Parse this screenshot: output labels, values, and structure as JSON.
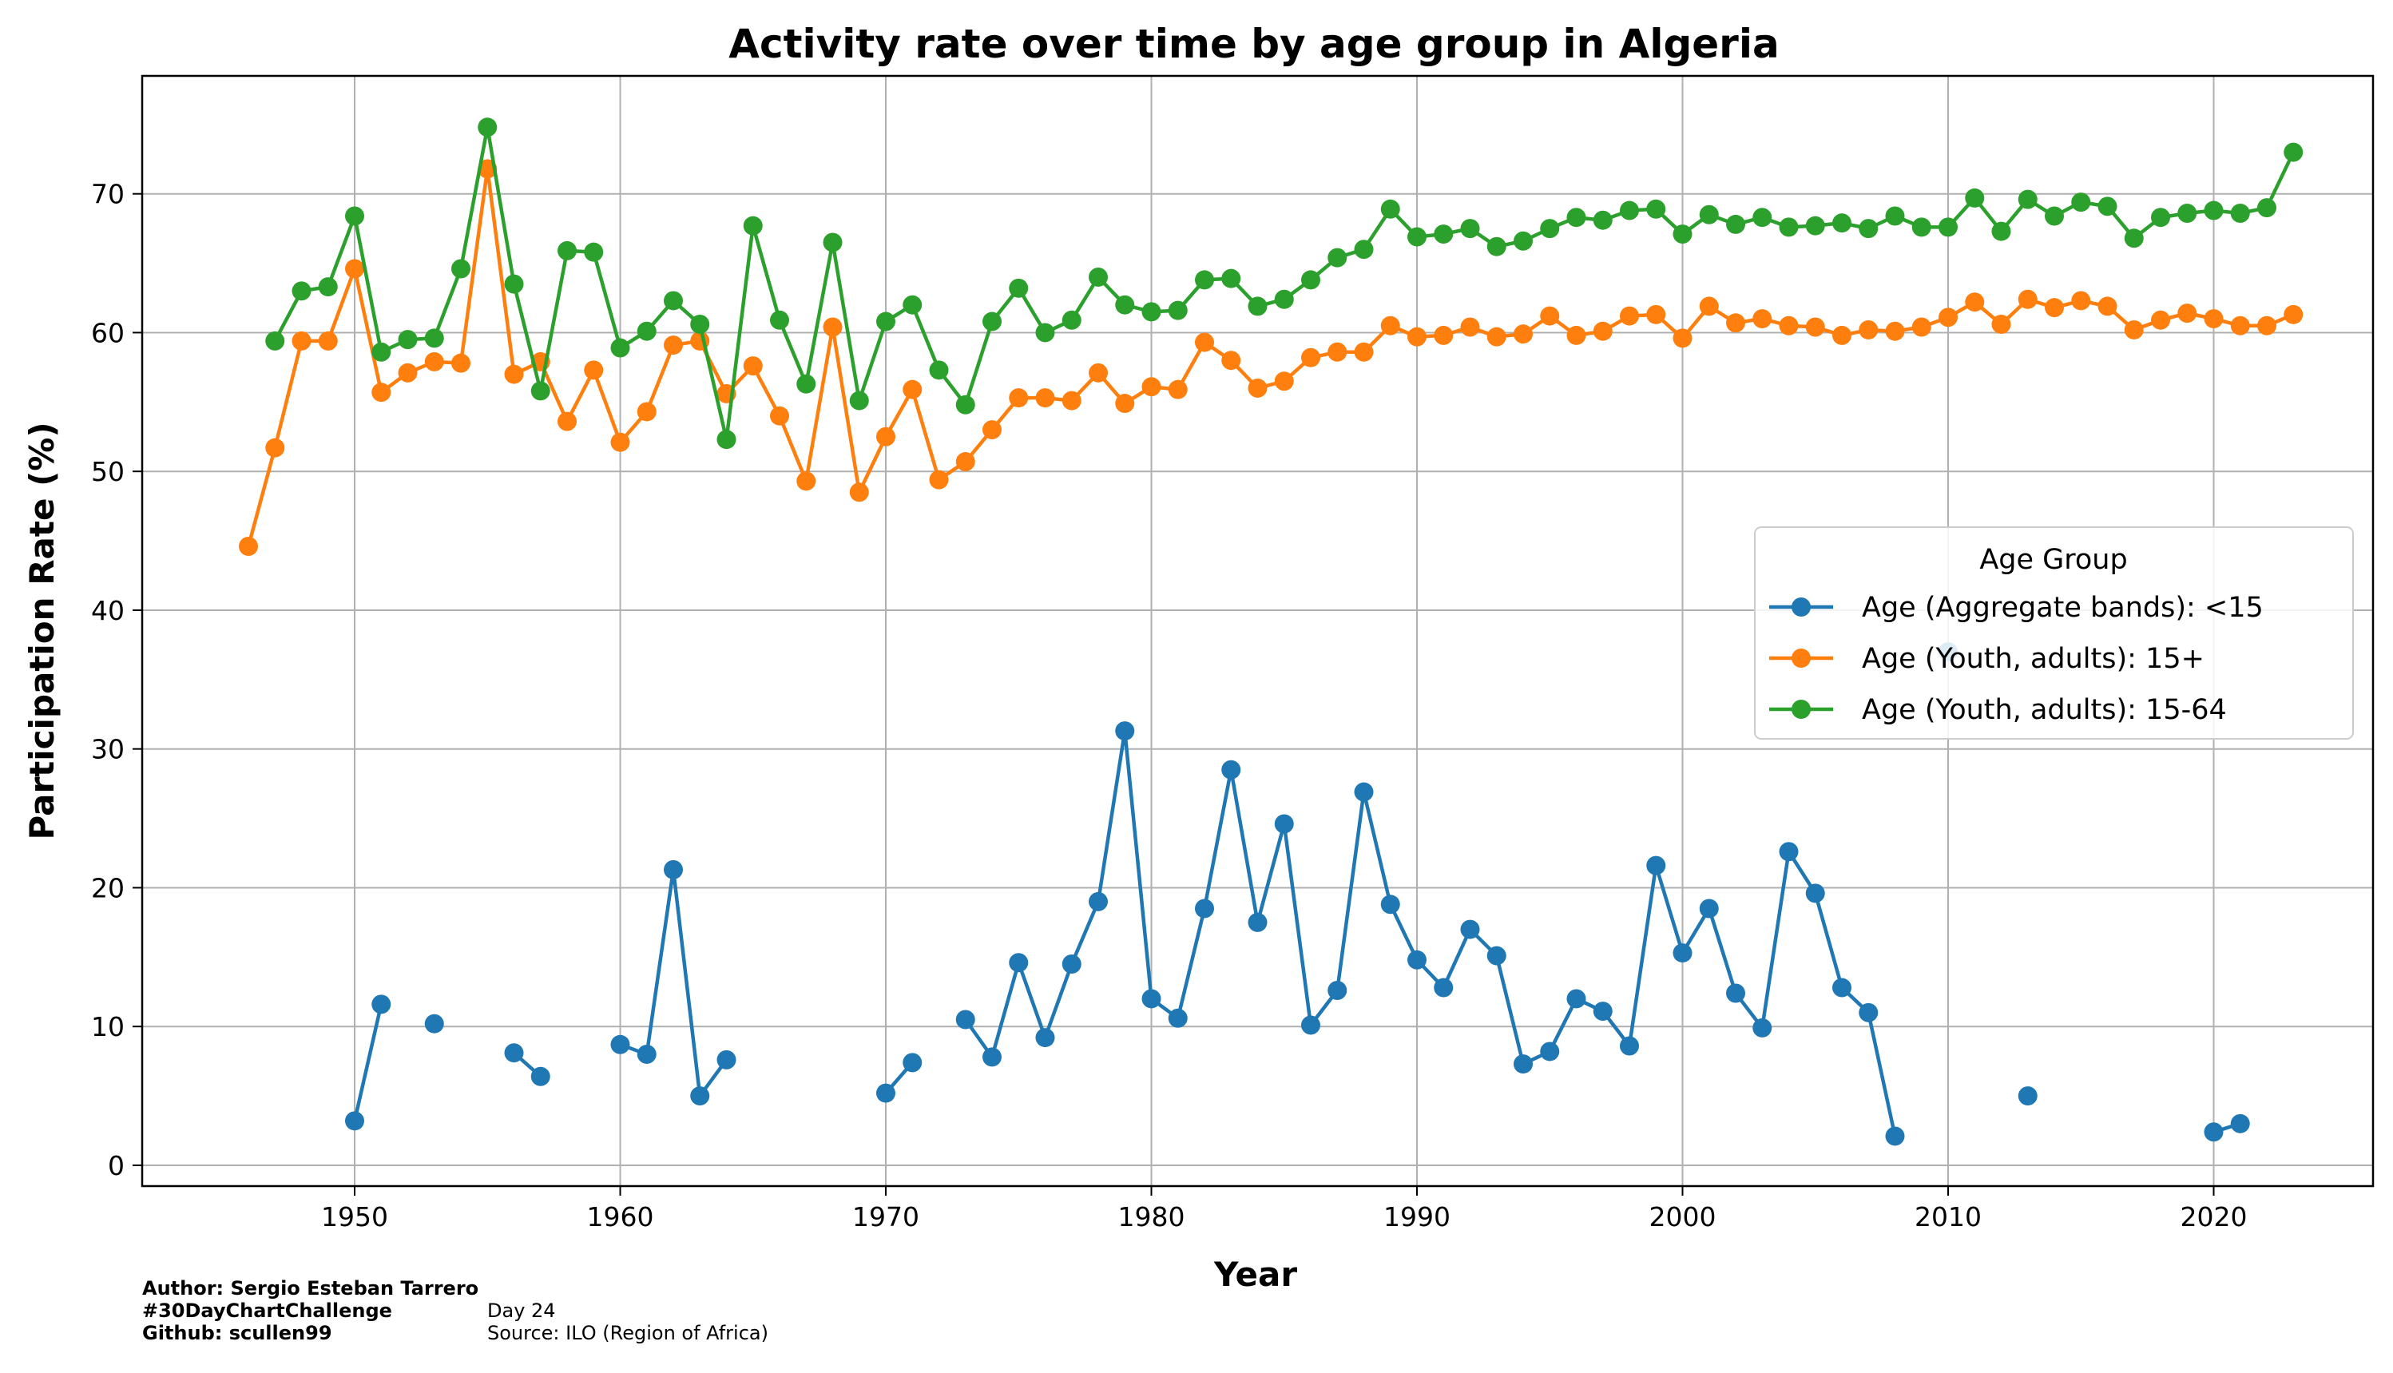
{
  "chart_data": {
    "type": "line",
    "title": "Activity rate over time by age group in Algeria",
    "xlabel": "Year",
    "ylabel": "Participation Rate (%)",
    "xlim": [
      1942,
      2026
    ],
    "ylim": [
      -1.5,
      78.5
    ],
    "xticks": [
      1950,
      1960,
      1970,
      1980,
      1990,
      2000,
      2010,
      2020
    ],
    "yticks": [
      0,
      10,
      20,
      30,
      40,
      50,
      60,
      70
    ],
    "grid": true,
    "legend": {
      "title": "Age Group",
      "placement": "center-right"
    },
    "series": [
      {
        "name": "Age (Aggregate bands): <15",
        "color": "#1f77b4",
        "points": [
          [
            1950,
            3.2
          ],
          [
            1951,
            11.6
          ],
          null,
          [
            1953,
            10.2
          ],
          null,
          [
            1956,
            8.1
          ],
          [
            1957,
            6.4
          ],
          null,
          [
            1960,
            8.7
          ],
          [
            1961,
            8.0
          ],
          [
            1962,
            21.3
          ],
          [
            1963,
            5.0
          ],
          [
            1964,
            7.6
          ],
          null,
          [
            1970,
            5.2
          ],
          [
            1971,
            7.4
          ],
          null,
          [
            1973,
            10.5
          ],
          [
            1974,
            7.8
          ],
          [
            1975,
            14.6
          ],
          [
            1976,
            9.2
          ],
          [
            1977,
            14.5
          ],
          [
            1978,
            19.0
          ],
          [
            1979,
            31.3
          ],
          [
            1980,
            12.0
          ],
          [
            1981,
            10.6
          ],
          [
            1982,
            18.5
          ],
          [
            1983,
            28.5
          ],
          [
            1984,
            17.5
          ],
          [
            1985,
            24.6
          ],
          [
            1986,
            10.1
          ],
          [
            1987,
            12.6
          ],
          [
            1988,
            26.9
          ],
          [
            1989,
            18.8
          ],
          [
            1990,
            14.8
          ],
          [
            1991,
            12.8
          ],
          [
            1992,
            17.0
          ],
          [
            1993,
            15.1
          ],
          [
            1994,
            7.3
          ],
          [
            1995,
            8.2
          ],
          [
            1996,
            12.0
          ],
          [
            1997,
            11.1
          ],
          [
            1998,
            8.6
          ],
          [
            1999,
            21.6
          ],
          [
            2000,
            15.3
          ],
          [
            2001,
            18.5
          ],
          [
            2002,
            12.4
          ],
          [
            2003,
            9.9
          ],
          [
            2004,
            22.6
          ],
          [
            2005,
            19.6
          ],
          [
            2006,
            12.8
          ],
          [
            2007,
            11.0
          ],
          [
            2008,
            2.1
          ],
          null,
          [
            2010,
            37.0
          ],
          null,
          [
            2013,
            5.0
          ],
          null,
          [
            2020,
            2.4
          ],
          [
            2021,
            3.0
          ]
        ]
      },
      {
        "name": "Age (Youth, adults): 15+",
        "color": "#ff7f0e",
        "points": [
          [
            1946,
            44.6
          ],
          [
            1947,
            51.7
          ],
          [
            1948,
            59.4
          ],
          [
            1949,
            59.4
          ],
          [
            1950,
            64.6
          ],
          [
            1951,
            55.7
          ],
          [
            1952,
            57.1
          ],
          [
            1953,
            57.9
          ],
          [
            1954,
            57.8
          ],
          [
            1955,
            71.8
          ],
          [
            1956,
            57.0
          ],
          [
            1957,
            57.9
          ],
          [
            1958,
            53.6
          ],
          [
            1959,
            57.3
          ],
          [
            1960,
            52.1
          ],
          [
            1961,
            54.3
          ],
          [
            1962,
            59.1
          ],
          [
            1963,
            59.4
          ],
          [
            1964,
            55.6
          ],
          [
            1965,
            57.6
          ],
          [
            1966,
            54.0
          ],
          [
            1967,
            49.3
          ],
          [
            1968,
            60.4
          ],
          [
            1969,
            48.5
          ],
          [
            1970,
            52.5
          ],
          [
            1971,
            55.9
          ],
          [
            1972,
            49.4
          ],
          [
            1973,
            50.7
          ],
          [
            1974,
            53.0
          ],
          [
            1975,
            55.3
          ],
          [
            1976,
            55.3
          ],
          [
            1977,
            55.1
          ],
          [
            1978,
            57.1
          ],
          [
            1979,
            54.9
          ],
          [
            1980,
            56.1
          ],
          [
            1981,
            55.9
          ],
          [
            1982,
            59.3
          ],
          [
            1983,
            58.0
          ],
          [
            1984,
            56.0
          ],
          [
            1985,
            56.5
          ],
          [
            1986,
            58.2
          ],
          [
            1987,
            58.6
          ],
          [
            1988,
            58.6
          ],
          [
            1989,
            60.5
          ],
          [
            1990,
            59.7
          ],
          [
            1991,
            59.8
          ],
          [
            1992,
            60.4
          ],
          [
            1993,
            59.7
          ],
          [
            1994,
            59.9
          ],
          [
            1995,
            61.2
          ],
          [
            1996,
            59.8
          ],
          [
            1997,
            60.1
          ],
          [
            1998,
            61.2
          ],
          [
            1999,
            61.3
          ],
          [
            2000,
            59.6
          ],
          [
            2001,
            61.9
          ],
          [
            2002,
            60.7
          ],
          [
            2003,
            61.0
          ],
          [
            2004,
            60.5
          ],
          [
            2005,
            60.4
          ],
          [
            2006,
            59.8
          ],
          [
            2007,
            60.2
          ],
          [
            2008,
            60.1
          ],
          [
            2009,
            60.4
          ],
          [
            2010,
            61.1
          ],
          [
            2011,
            62.2
          ],
          [
            2012,
            60.6
          ],
          [
            2013,
            62.4
          ],
          [
            2014,
            61.8
          ],
          [
            2015,
            62.3
          ],
          [
            2016,
            61.9
          ],
          [
            2017,
            60.2
          ],
          [
            2018,
            60.9
          ],
          [
            2019,
            61.4
          ],
          [
            2020,
            61.0
          ],
          [
            2021,
            60.5
          ],
          [
            2022,
            60.5
          ],
          [
            2023,
            61.3
          ]
        ]
      },
      {
        "name": "Age (Youth, adults): 15-64",
        "color": "#2ca02c",
        "points": [
          [
            1947,
            59.4
          ],
          [
            1948,
            63.0
          ],
          [
            1949,
            63.3
          ],
          [
            1950,
            68.4
          ],
          [
            1951,
            58.6
          ],
          [
            1952,
            59.5
          ],
          [
            1953,
            59.6
          ],
          [
            1954,
            64.6
          ],
          [
            1955,
            74.8
          ],
          [
            1956,
            63.5
          ],
          [
            1957,
            55.8
          ],
          [
            1958,
            65.9
          ],
          [
            1959,
            65.8
          ],
          [
            1960,
            58.9
          ],
          [
            1961,
            60.1
          ],
          [
            1962,
            62.3
          ],
          [
            1963,
            60.6
          ],
          [
            1964,
            52.3
          ],
          [
            1965,
            67.7
          ],
          [
            1966,
            60.9
          ],
          [
            1967,
            56.3
          ],
          [
            1968,
            66.5
          ],
          [
            1969,
            55.1
          ],
          [
            1970,
            60.8
          ],
          [
            1971,
            62.0
          ],
          [
            1972,
            57.3
          ],
          [
            1973,
            54.8
          ],
          [
            1974,
            60.8
          ],
          [
            1975,
            63.2
          ],
          [
            1976,
            60.0
          ],
          [
            1977,
            60.9
          ],
          [
            1978,
            64.0
          ],
          [
            1979,
            62.0
          ],
          [
            1980,
            61.5
          ],
          [
            1981,
            61.6
          ],
          [
            1982,
            63.8
          ],
          [
            1983,
            63.9
          ],
          [
            1984,
            61.9
          ],
          [
            1985,
            62.4
          ],
          [
            1986,
            63.8
          ],
          [
            1987,
            65.4
          ],
          [
            1988,
            66.0
          ],
          [
            1989,
            68.9
          ],
          [
            1990,
            66.9
          ],
          [
            1991,
            67.1
          ],
          [
            1992,
            67.5
          ],
          [
            1993,
            66.2
          ],
          [
            1994,
            66.6
          ],
          [
            1995,
            67.5
          ],
          [
            1996,
            68.3
          ],
          [
            1997,
            68.1
          ],
          [
            1998,
            68.8
          ],
          [
            1999,
            68.9
          ],
          [
            2000,
            67.1
          ],
          [
            2001,
            68.5
          ],
          [
            2002,
            67.8
          ],
          [
            2003,
            68.3
          ],
          [
            2004,
            67.6
          ],
          [
            2005,
            67.7
          ],
          [
            2006,
            67.9
          ],
          [
            2007,
            67.5
          ],
          [
            2008,
            68.4
          ],
          [
            2009,
            67.6
          ],
          [
            2010,
            67.6
          ],
          [
            2011,
            69.7
          ],
          [
            2012,
            67.3
          ],
          [
            2013,
            69.6
          ],
          [
            2014,
            68.4
          ],
          [
            2015,
            69.4
          ],
          [
            2016,
            69.1
          ],
          [
            2017,
            66.8
          ],
          [
            2018,
            68.3
          ],
          [
            2019,
            68.6
          ],
          [
            2020,
            68.8
          ],
          [
            2021,
            68.6
          ],
          [
            2022,
            69.0
          ],
          [
            2023,
            73.0
          ]
        ]
      }
    ]
  },
  "footer": {
    "author": "Author: Sergio Esteban Tarrero",
    "challenge": "#30DayChartChallenge",
    "github": "Github: scullen99",
    "day": "Day 24",
    "source": "Source: ILO (Region of Africa)"
  }
}
